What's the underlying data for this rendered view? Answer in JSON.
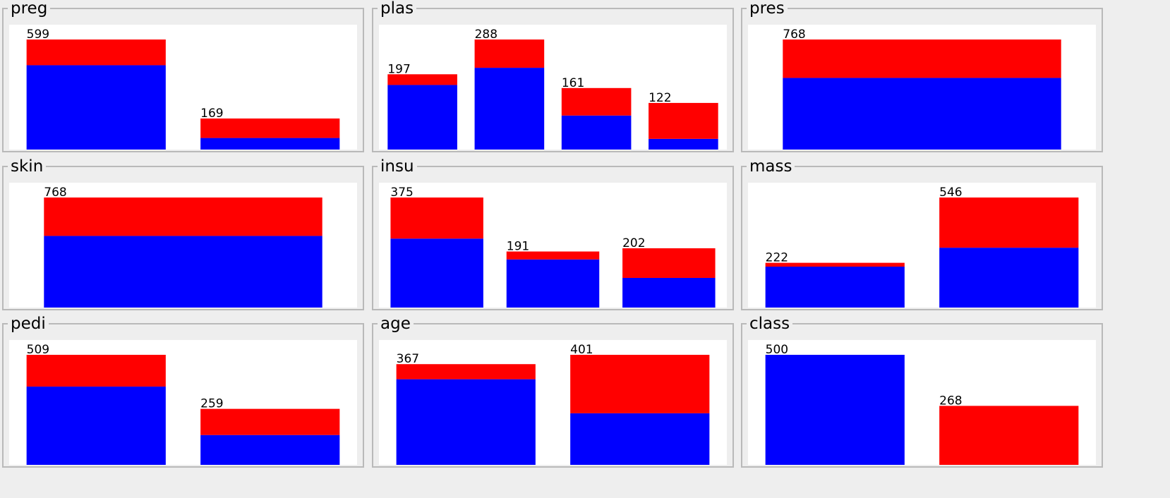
{
  "colors": {
    "class_a": "#0000ff",
    "class_b": "#ff0000",
    "background": "#eeeeee",
    "plot_background": "#ffffff"
  },
  "chart_data": [
    {
      "type": "bar",
      "title": "preg",
      "stacked": true,
      "bars": [
        {
          "total": 599,
          "class_a": 459,
          "class_b": 140
        },
        {
          "total": 169,
          "class_a": 63,
          "class_b": 106
        }
      ]
    },
    {
      "type": "bar",
      "title": "plas",
      "stacked": true,
      "bars": [
        {
          "total": 197,
          "class_a": 169,
          "class_b": 28
        },
        {
          "total": 288,
          "class_a": 214,
          "class_b": 74
        },
        {
          "total": 161,
          "class_a": 89,
          "class_b": 72
        },
        {
          "total": 122,
          "class_a": 28,
          "class_b": 94
        }
      ]
    },
    {
      "type": "bar",
      "title": "pres",
      "stacked": true,
      "bars": [
        {
          "total": 768,
          "class_a": 500,
          "class_b": 268
        }
      ]
    },
    {
      "type": "bar",
      "title": "skin",
      "stacked": true,
      "bars": [
        {
          "total": 768,
          "class_a": 500,
          "class_b": 268
        }
      ]
    },
    {
      "type": "bar",
      "title": "insu",
      "stacked": true,
      "bars": [
        {
          "total": 375,
          "class_a": 235,
          "class_b": 140
        },
        {
          "total": 191,
          "class_a": 164,
          "class_b": 27
        },
        {
          "total": 202,
          "class_a": 101,
          "class_b": 101
        }
      ]
    },
    {
      "type": "bar",
      "title": "mass",
      "stacked": true,
      "bars": [
        {
          "total": 222,
          "class_a": 203,
          "class_b": 19
        },
        {
          "total": 546,
          "class_a": 297,
          "class_b": 249
        }
      ]
    },
    {
      "type": "bar",
      "title": "pedi",
      "stacked": true,
      "bars": [
        {
          "total": 509,
          "class_a": 362,
          "class_b": 147
        },
        {
          "total": 259,
          "class_a": 138,
          "class_b": 121
        }
      ]
    },
    {
      "type": "bar",
      "title": "age",
      "stacked": true,
      "bars": [
        {
          "total": 367,
          "class_a": 312,
          "class_b": 55
        },
        {
          "total": 401,
          "class_a": 188,
          "class_b": 213
        }
      ]
    },
    {
      "type": "bar",
      "title": "class",
      "stacked": true,
      "bars": [
        {
          "total": 500,
          "class_a": 500,
          "class_b": 0
        },
        {
          "total": 268,
          "class_a": 0,
          "class_b": 268
        }
      ]
    }
  ]
}
